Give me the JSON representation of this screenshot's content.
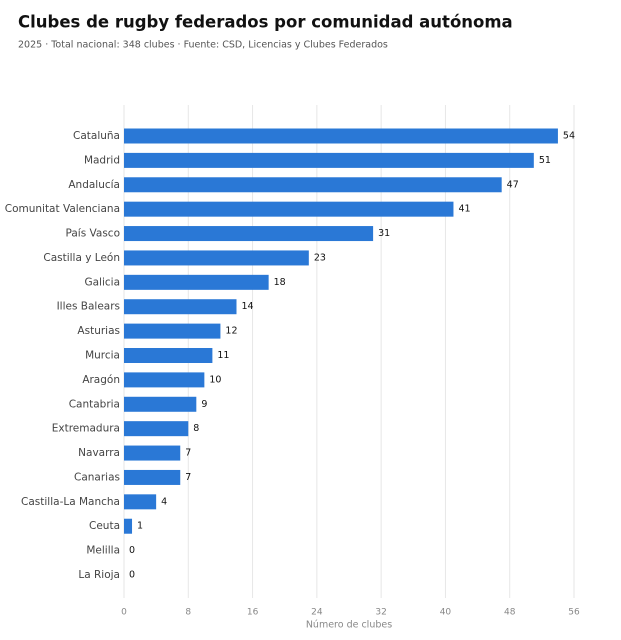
{
  "chart_data": {
    "type": "barh",
    "title": "Clubes de rugby federados por comunidad autónoma",
    "subtitle": "2025 · Total nacional: 348 clubes · Fuente: CSD, Licencias y Clubes Federados",
    "x_label": "Número de clubes",
    "categories": [
      "Cataluña",
      "Madrid",
      "Andalucía",
      "Comunitat Valenciana",
      "País Vasco",
      "Castilla y León",
      "Galicia",
      "Illes Balears",
      "Asturias",
      "Murcia",
      "Aragón",
      "Cantabria",
      "Extremadura",
      "Navarra",
      "Canarias",
      "Castilla-La Mancha",
      "Ceuta",
      "Melilla",
      "La Rioja"
    ],
    "values": [
      54,
      51,
      47,
      41,
      31,
      23,
      18,
      14,
      12,
      11,
      10,
      9,
      8,
      7,
      7,
      4,
      1,
      0,
      0
    ],
    "color": "#2a78d6",
    "xlim": [
      0,
      56
    ],
    "xticks": [
      0,
      8,
      16,
      24,
      32,
      40,
      48,
      56
    ],
    "grid": true
  }
}
